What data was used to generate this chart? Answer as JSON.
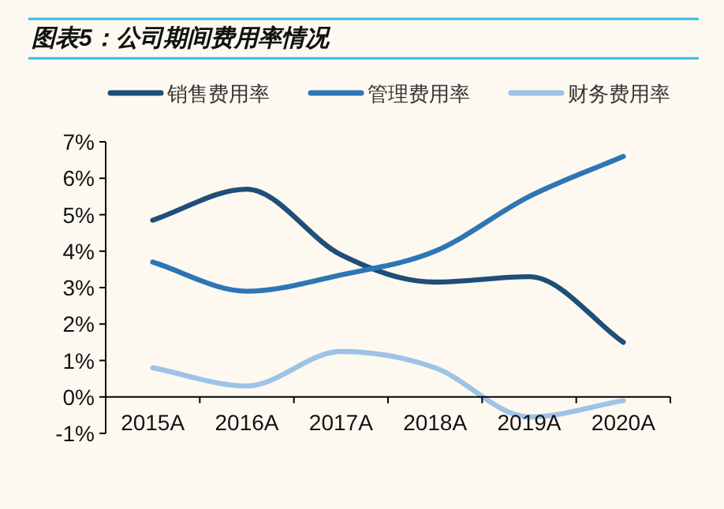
{
  "chart_data": {
    "type": "line",
    "title": "图表5：公司期间费用率情况",
    "categories": [
      "2015A",
      "2016A",
      "2017A",
      "2018A",
      "2019A",
      "2020A"
    ],
    "series": [
      {
        "name": "销售费用率",
        "color": "#1f4e79",
        "values": [
          4.85,
          5.7,
          3.9,
          3.15,
          3.3,
          1.5
        ]
      },
      {
        "name": "管理费用率",
        "color": "#2e75b6",
        "values": [
          3.7,
          2.9,
          3.35,
          4.0,
          5.5,
          6.6
        ]
      },
      {
        "name": "财务费用率",
        "color": "#9dc3e6",
        "values": [
          0.8,
          0.3,
          1.25,
          0.8,
          -0.55,
          -0.1
        ]
      }
    ],
    "ylim": [
      -1,
      7
    ],
    "yticks": [
      {
        "value": -1,
        "label": "-1%"
      },
      {
        "value": 0,
        "label": "0%"
      },
      {
        "value": 1,
        "label": "1%"
      },
      {
        "value": 2,
        "label": "2%"
      },
      {
        "value": 3,
        "label": "3%"
      },
      {
        "value": 4,
        "label": "4%"
      },
      {
        "value": 5,
        "label": "5%"
      },
      {
        "value": 6,
        "label": "6%"
      },
      {
        "value": 7,
        "label": "7%"
      }
    ],
    "legend": "top",
    "grid": false,
    "marker": "none",
    "line_style": "solid"
  }
}
